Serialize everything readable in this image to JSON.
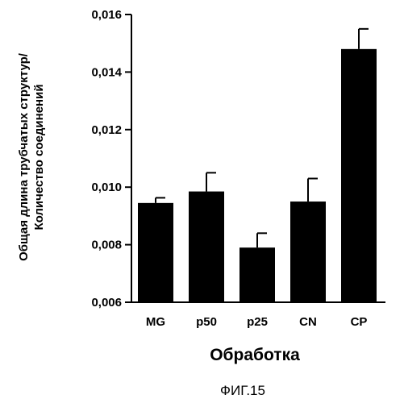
{
  "chart_data": {
    "type": "bar",
    "categories": [
      "MG",
      "p50",
      "p25",
      "CN",
      "CP"
    ],
    "values": [
      0.00945,
      0.00985,
      0.0079,
      0.0095,
      0.0148
    ],
    "errors": [
      0.00018,
      0.00065,
      0.0005,
      0.0008,
      0.0007
    ],
    "ylim": [
      0.006,
      0.016
    ],
    "yticks": [
      "0,006",
      "0,008",
      "0,010",
      "0,012",
      "0,014",
      "0,016"
    ],
    "ylabel_line1": "Общая длина трубчатых структур/",
    "ylabel_line2": "Количество соединений",
    "xlabel": "Обработка",
    "caption": "ФИГ.15",
    "bar_color": "#000000",
    "grid": false
  }
}
